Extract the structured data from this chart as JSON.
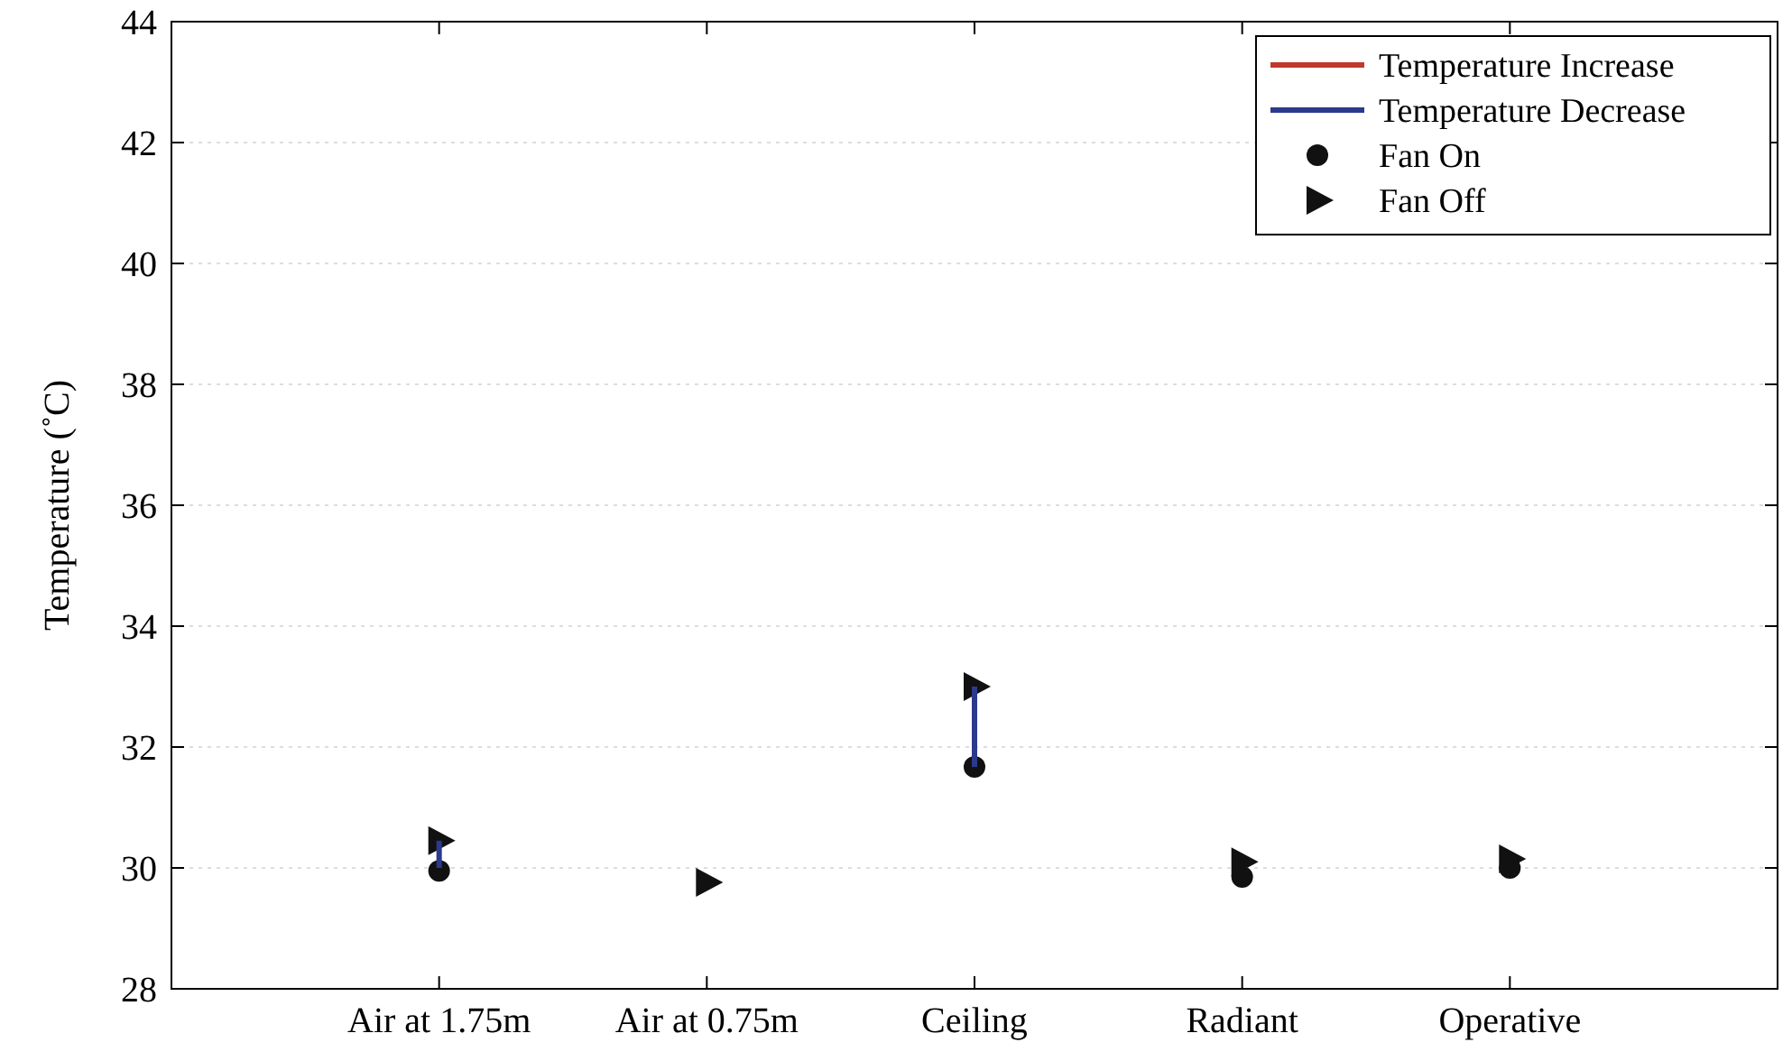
{
  "chart_data": {
    "type": "scatter",
    "ylabel": "Temperature (˚C)",
    "categories": [
      "Air at 1.75m",
      "Air at 0.75m",
      "Ceiling",
      "Radiant",
      "Operative"
    ],
    "ylim": [
      28,
      44
    ],
    "yticks": [
      28,
      30,
      32,
      34,
      36,
      38,
      40,
      42,
      44
    ],
    "grid": "y",
    "legend": "top right",
    "series": [
      {
        "name": "Temperature Increase",
        "type": "bar",
        "color": "#c0392b",
        "base": [
          null,
          null,
          null,
          null,
          null
        ],
        "values": [
          null,
          null,
          null,
          null,
          null
        ]
      },
      {
        "name": "Temperature Decrease",
        "type": "bar",
        "color": "#2b3a8c",
        "base": [
          30.45,
          null,
          33.0,
          null,
          null
        ],
        "values": [
          -0.45,
          null,
          -1.33,
          null,
          null
        ]
      },
      {
        "name": "Fan On",
        "marker": "circle",
        "color": "#111111",
        "values": [
          29.95,
          null,
          31.67,
          29.85,
          30.0
        ]
      },
      {
        "name": "Fan Off",
        "marker": "triangle",
        "color": "#111111",
        "values": [
          30.45,
          29.76,
          33.0,
          30.1,
          30.15
        ]
      }
    ]
  }
}
